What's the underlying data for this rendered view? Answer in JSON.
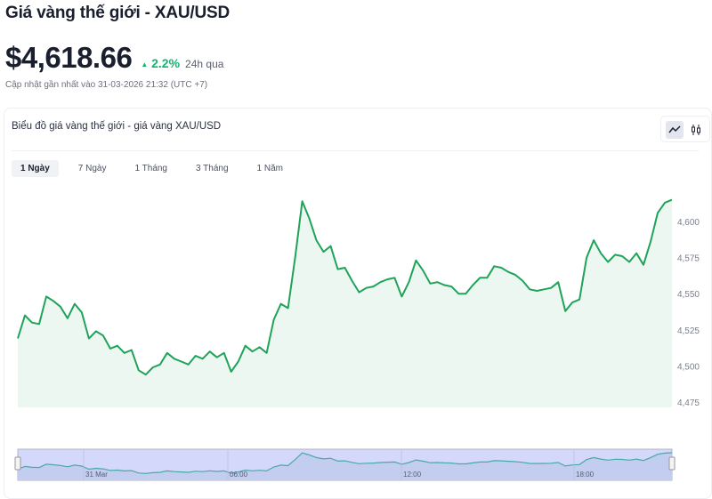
{
  "header": {
    "title": "Giá vàng thế giới - XAU/USD",
    "price": "$4,618.66",
    "change": "2.2%",
    "change_direction": "up",
    "period": "24h qua",
    "updated": "Cập nhật gần nhất vào 31-03-2026 21:32 (UTC +7)"
  },
  "card": {
    "title": "Biểu đồ giá vàng thế giới - giá vàng XAU/USD",
    "chart_types": [
      {
        "icon": "line-chart-icon",
        "active": true
      },
      {
        "icon": "candlestick-icon",
        "active": false
      }
    ],
    "tabs": [
      {
        "label": "1 Ngày",
        "active": true
      },
      {
        "label": "7 Ngày"
      },
      {
        "label": "1 Tháng"
      },
      {
        "label": "3 Tháng"
      },
      {
        "label": "1 Năm"
      }
    ]
  },
  "colors": {
    "line": "#1fa35a",
    "fill": "#edf7f1",
    "up": "#16b36e",
    "navigator": "#d4d8fb",
    "navigator_line": "#4aa8a8"
  },
  "chart_data": {
    "type": "area",
    "ylim": [
      4475,
      4615
    ],
    "yticks": [
      4475,
      4500,
      4525,
      4550,
      4575,
      4600
    ],
    "ytick_labels": [
      "4,475",
      "4,500",
      "4,525",
      "4,550",
      "4,575",
      "4,600"
    ],
    "navigator_labels": [
      "31 Mar",
      "06:00",
      "12:00",
      "18:00"
    ],
    "values": [
      4519,
      4535,
      4530,
      4529,
      4548,
      4545,
      4541,
      4533,
      4543,
      4537,
      4519,
      4524,
      4521,
      4512,
      4514,
      4509,
      4511,
      4497,
      4494,
      4499,
      4501,
      4509,
      4505,
      4503,
      4501,
      4507,
      4505,
      4510,
      4506,
      4509,
      4496,
      4503,
      4514,
      4510,
      4513,
      4509,
      4532,
      4543,
      4540,
      4575,
      4614,
      4602,
      4587,
      4579,
      4583,
      4567,
      4568,
      4559,
      4551,
      4554,
      4555,
      4558,
      4560,
      4561,
      4548,
      4558,
      4573,
      4566,
      4557,
      4558,
      4556,
      4555,
      4550,
      4550,
      4556,
      4561,
      4561,
      4569,
      4568,
      4565,
      4563,
      4559,
      4553,
      4552,
      4553,
      4554,
      4558,
      4538,
      4544,
      4546,
      4575,
      4587,
      4578,
      4572,
      4577,
      4576,
      4572,
      4578,
      4570,
      4586,
      4606,
      4613,
      4615
    ]
  }
}
